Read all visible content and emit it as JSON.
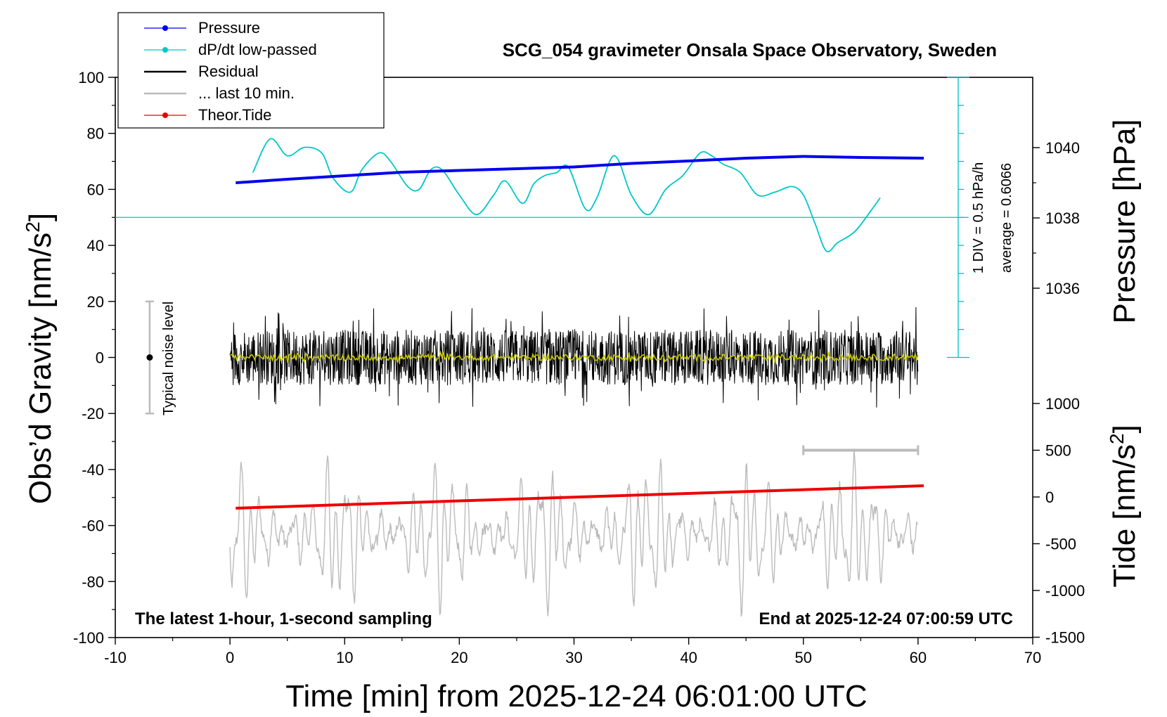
{
  "chart_data": {
    "type": "line",
    "title": "SCG_054 gravimeter Onsala Space Observatory, Sweden",
    "xlabel": "Time [min] from 2025-12-24 06:01:00 UTC",
    "ylabel_left": "Obs'd Gravity [nm/s2]",
    "ylabel_right_top": "Pressure [hPa]",
    "ylabel_right_bottom": "Tide [nm/s2]",
    "footer_left": "The latest 1-hour, 1-second sampling",
    "footer_right": "End at 2025-12-24 07:00:59 UTC",
    "noise_label": "Typical noise level",
    "scale_label": "1 DIV = 0.5 hPa/h",
    "average_label": "average = 0.6066",
    "xlim": [
      -10,
      70
    ],
    "ylim_gravity": [
      -100,
      100
    ],
    "ylim_tide": [
      -1500,
      1000
    ],
    "x_ticks": [
      -10,
      0,
      10,
      20,
      30,
      40,
      50,
      60,
      70
    ],
    "x_tick_labels": [
      "-10",
      "0",
      "10",
      "20",
      "30",
      "40",
      "50",
      "60",
      "70"
    ],
    "y_ticks": [
      -100,
      -80,
      -60,
      -40,
      -20,
      0,
      20,
      40,
      60,
      80,
      100
    ],
    "y_tick_labels": [
      "-100",
      "-80",
      "-60",
      "-40",
      "-20",
      "0",
      "20",
      "40",
      "60",
      "80",
      "100"
    ],
    "pressure_ticks": [
      1036,
      1038,
      1040
    ],
    "pressure_tick_labels": [
      "1036",
      "1038",
      "1040"
    ],
    "tide_ticks": [
      -1500,
      -1000,
      -500,
      0,
      500,
      1000
    ],
    "tide_tick_labels": [
      "-1500",
      "-1000",
      "-500",
      "0",
      "500",
      "1000"
    ],
    "legend": {
      "placement": "top-left",
      "entries": [
        {
          "label": "Pressure",
          "color": "#0000ee",
          "marker": true
        },
        {
          "label": "dP/dt low-passed",
          "color": "#00c8c8",
          "marker": true
        },
        {
          "label": "Residual",
          "color": "#000000",
          "marker": false
        },
        {
          "label": "... last 10 min.",
          "color": "#bbbbbb",
          "marker": false
        },
        {
          "label": "Theor.Tide",
          "color": "#ee0000",
          "marker": true
        }
      ]
    },
    "series": [
      {
        "name": "Pressure",
        "axis": "pressure",
        "color": "#0000ee",
        "x": [
          0.5,
          5,
          10,
          15,
          20,
          25,
          30,
          35,
          40,
          45,
          50,
          55,
          60.5
        ],
        "y": [
          1039.0,
          1039.1,
          1039.2,
          1039.3,
          1039.35,
          1039.4,
          1039.45,
          1039.55,
          1039.62,
          1039.7,
          1039.75,
          1039.72,
          1039.7
        ]
      },
      {
        "name": "dP/dt low-passed",
        "axis": "gravity",
        "color": "#00c8c8",
        "x": [
          2,
          3.5,
          5,
          6.5,
          8,
          9,
          10.5,
          11.5,
          13,
          14,
          15.5,
          16.5,
          17.5,
          18.5,
          20,
          21.5,
          23,
          24,
          25.5,
          26.5,
          27.5,
          28.5,
          29.5,
          31,
          32,
          33.5,
          35,
          36.5,
          38,
          39.5,
          41,
          42,
          43,
          44.5,
          46,
          47.5,
          49,
          50,
          51,
          52,
          53,
          54.5,
          56,
          56.7
        ],
        "y": [
          66,
          78,
          72,
          75,
          73,
          64,
          59,
          67,
          73,
          70,
          61,
          60,
          67,
          67,
          58,
          51,
          58,
          63,
          55,
          62,
          65,
          66,
          68,
          53,
          57,
          72,
          58,
          51,
          60,
          65,
          73,
          72,
          69,
          66,
          58,
          59,
          61,
          58,
          48,
          38,
          41,
          45,
          53,
          57
        ]
      },
      {
        "name": "Residual",
        "axis": "gravity",
        "color": "#000000",
        "x_range": [
          0,
          60
        ],
        "center": 0,
        "amplitude": 18
      },
      {
        "name": "Residual smoothed",
        "axis": "gravity",
        "color": "#c8c800",
        "x_range": [
          0,
          60
        ],
        "center": 0,
        "amplitude": 2
      },
      {
        "name": "... last 10 min.",
        "axis": "gravity",
        "color": "#bbbbbb",
        "x_range": [
          0,
          60
        ],
        "center": -63,
        "amplitude": 18
      },
      {
        "name": "Theor.Tide",
        "axis": "tide",
        "color": "#ee0000",
        "x": [
          0.5,
          60.5
        ],
        "y": [
          -120,
          120
        ]
      }
    ],
    "dpdt_reference_line": 50,
    "noise_bar": {
      "x": -7,
      "center": 0,
      "half_range": 20
    },
    "last10_bar": {
      "x_range": [
        50,
        60
      ],
      "y": 500
    },
    "grid": false
  }
}
